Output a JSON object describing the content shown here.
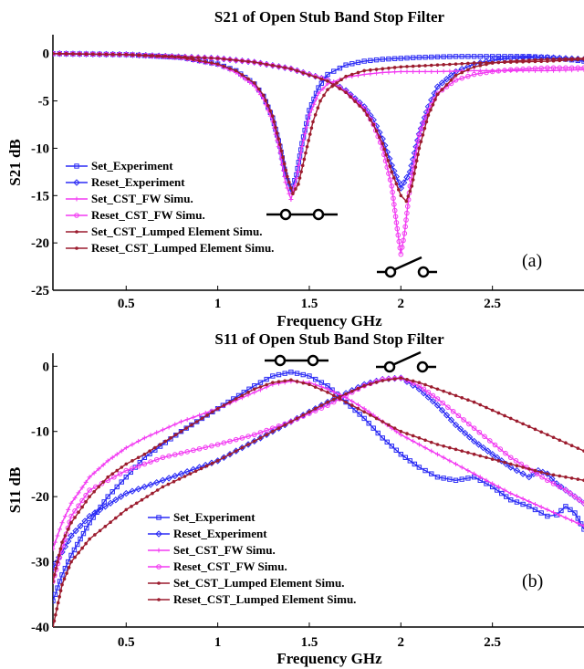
{
  "colors": {
    "blue": "#2b2bf5",
    "magenta": "#f23af2",
    "darkred": "#9c1c2e"
  },
  "chart_data": [
    {
      "type": "line",
      "title": "S21 of Open Stub Band Stop Filter",
      "xlabel": "Frequency GHz",
      "ylabel": "S21 dB",
      "xlim": [
        0.1,
        3.0
      ],
      "ylim": [
        -25,
        2
      ],
      "xticks": [
        0.5,
        1,
        1.5,
        2,
        2.5
      ],
      "xtick_labels": [
        "0.5",
        "1",
        "1.5",
        "2",
        "2.5"
      ],
      "yticks": [
        0,
        -5,
        -10,
        -15,
        -20,
        -25
      ],
      "ytick_labels": [
        "0",
        "-5",
        "-10",
        "-15",
        "-20",
        "-25"
      ],
      "grid": false,
      "legend_position": "lower-left",
      "panel_label": "(a)",
      "series": [
        {
          "name": "Set_Experiment",
          "color": "#2b2bf5",
          "marker": "square",
          "x": [
            0.1,
            0.5,
            0.8,
            1.0,
            1.1,
            1.2,
            1.25,
            1.3,
            1.34,
            1.37,
            1.4,
            1.43,
            1.46,
            1.5,
            1.55,
            1.6,
            1.7,
            1.8,
            1.9,
            2.0,
            2.1,
            2.2,
            2.3,
            2.4,
            2.5,
            2.6,
            2.7,
            2.8,
            2.9,
            3.0
          ],
          "y": [
            0,
            -0.1,
            -0.4,
            -1.1,
            -1.8,
            -3.2,
            -4.5,
            -6.8,
            -9.8,
            -12.8,
            -14.6,
            -12.8,
            -9.5,
            -6.0,
            -3.6,
            -2.2,
            -1.2,
            -0.8,
            -0.6,
            -0.5,
            -0.4,
            -0.35,
            -0.3,
            -0.3,
            -0.3,
            -0.3,
            -0.3,
            -0.4,
            -0.6,
            -0.8
          ]
        },
        {
          "name": "Reset_Experiment",
          "color": "#2b2bf5",
          "marker": "diamond",
          "x": [
            0.1,
            0.5,
            1.0,
            1.2,
            1.4,
            1.6,
            1.7,
            1.8,
            1.85,
            1.9,
            1.95,
            2.0,
            2.05,
            2.1,
            2.15,
            2.2,
            2.3,
            2.4,
            2.5,
            2.6,
            2.7,
            2.8,
            2.9,
            3.0
          ],
          "y": [
            0,
            -0.1,
            -0.5,
            -0.9,
            -1.6,
            -2.8,
            -3.9,
            -5.6,
            -7.0,
            -9.0,
            -11.8,
            -14.2,
            -12.5,
            -8.5,
            -5.6,
            -3.5,
            -1.9,
            -1.1,
            -0.7,
            -0.5,
            -0.4,
            -0.4,
            -0.5,
            -0.6
          ]
        },
        {
          "name": "Set_CST_FW Simu.",
          "color": "#f23af2",
          "marker": "plus",
          "x": [
            0.1,
            0.5,
            0.8,
            1.0,
            1.1,
            1.2,
            1.25,
            1.3,
            1.34,
            1.37,
            1.4,
            1.43,
            1.46,
            1.5,
            1.55,
            1.6,
            1.7,
            1.8,
            1.9,
            2.0,
            2.2,
            2.4,
            2.6,
            2.8,
            3.0
          ],
          "y": [
            0,
            -0.1,
            -0.5,
            -1.2,
            -2.0,
            -3.4,
            -4.8,
            -7.2,
            -10.5,
            -13.6,
            -15.4,
            -13.2,
            -9.8,
            -6.5,
            -4.2,
            -3.2,
            -2.5,
            -2.2,
            -2.0,
            -1.9,
            -1.9,
            -1.8,
            -1.8,
            -1.8,
            -1.7
          ]
        },
        {
          "name": "Reset_CST_FW Simu.",
          "color": "#f23af2",
          "marker": "circle",
          "x": [
            0.1,
            0.5,
            1.0,
            1.2,
            1.4,
            1.6,
            1.7,
            1.8,
            1.85,
            1.9,
            1.95,
            1.98,
            2.0,
            2.02,
            2.05,
            2.1,
            2.15,
            2.2,
            2.3,
            2.4,
            2.5,
            2.6,
            2.8,
            3.0
          ],
          "y": [
            0,
            -0.1,
            -0.5,
            -0.9,
            -1.6,
            -2.8,
            -4.0,
            -5.8,
            -7.5,
            -10.0,
            -14.0,
            -18.5,
            -21.2,
            -19.0,
            -14.0,
            -8.6,
            -6.0,
            -4.2,
            -2.8,
            -2.2,
            -1.9,
            -1.7,
            -1.5,
            -1.5
          ]
        },
        {
          "name": "Set_CST_Lumped Element Simu.",
          "color": "#9c1c2e",
          "marker": "dot",
          "x": [
            0.1,
            0.5,
            0.8,
            1.0,
            1.1,
            1.2,
            1.25,
            1.3,
            1.34,
            1.38,
            1.41,
            1.44,
            1.48,
            1.52,
            1.56,
            1.6,
            1.7,
            1.8,
            1.9,
            2.0,
            2.2,
            2.4,
            2.6,
            2.8,
            3.0
          ],
          "y": [
            0,
            -0.1,
            -0.4,
            -1.1,
            -1.8,
            -3.1,
            -4.4,
            -6.6,
            -9.6,
            -13.0,
            -14.8,
            -13.8,
            -10.5,
            -7.2,
            -5.0,
            -3.8,
            -2.4,
            -1.8,
            -1.6,
            -1.4,
            -1.2,
            -1.0,
            -0.9,
            -0.8,
            -0.6
          ]
        },
        {
          "name": "Reset_CST_Lumped Element Simu.",
          "color": "#9c1c2e",
          "marker": "dot",
          "x": [
            0.1,
            0.5,
            1.0,
            1.2,
            1.4,
            1.6,
            1.7,
            1.8,
            1.85,
            1.9,
            1.95,
            2.0,
            2.03,
            2.06,
            2.1,
            2.15,
            2.2,
            2.3,
            2.4,
            2.5,
            2.6,
            2.8,
            3.0
          ],
          "y": [
            0,
            -0.1,
            -0.5,
            -0.9,
            -1.6,
            -2.9,
            -4.1,
            -6.0,
            -7.5,
            -9.5,
            -12.5,
            -15.0,
            -15.6,
            -14.0,
            -10.0,
            -6.5,
            -4.3,
            -2.3,
            -1.4,
            -1.0,
            -0.8,
            -0.6,
            -0.5
          ]
        }
      ]
    },
    {
      "type": "line",
      "title": "S11 of Open Stub Band Stop Filter",
      "xlabel": "Frequency GHz",
      "ylabel": "S11 dB",
      "xlim": [
        0.1,
        3.0
      ],
      "ylim": [
        -40,
        2
      ],
      "xticks": [
        0.5,
        1,
        1.5,
        2,
        2.5
      ],
      "xtick_labels": [
        "0.5",
        "1",
        "1.5",
        "2",
        "2.5"
      ],
      "yticks": [
        0,
        -10,
        -20,
        -30,
        -40
      ],
      "ytick_labels": [
        "0",
        "-10",
        "-20",
        "-30",
        "-40"
      ],
      "grid": false,
      "legend_position": "lower-center",
      "panel_label": "(b)",
      "series": [
        {
          "name": "Set_Experiment",
          "color": "#2b2bf5",
          "marker": "square",
          "x": [
            0.1,
            0.15,
            0.2,
            0.3,
            0.4,
            0.5,
            0.6,
            0.8,
            1.0,
            1.2,
            1.3,
            1.4,
            1.5,
            1.6,
            1.7,
            1.8,
            1.9,
            2.0,
            2.1,
            2.2,
            2.3,
            2.4,
            2.5,
            2.6,
            2.7,
            2.8,
            2.85,
            2.9,
            2.95,
            3.0
          ],
          "y": [
            -36,
            -32,
            -29,
            -24,
            -20,
            -17,
            -14,
            -10,
            -6.5,
            -3.0,
            -1.5,
            -0.9,
            -1.5,
            -3.0,
            -5.5,
            -8.0,
            -11.0,
            -13.5,
            -15.5,
            -17.0,
            -17.5,
            -17.0,
            -18.5,
            -20.5,
            -21.5,
            -23.0,
            -22.8,
            -21.5,
            -22.5,
            -25.0
          ]
        },
        {
          "name": "Reset_Experiment",
          "color": "#2b2bf5",
          "marker": "diamond",
          "x": [
            0.1,
            0.2,
            0.3,
            0.5,
            0.7,
            1.0,
            1.2,
            1.4,
            1.6,
            1.8,
            1.9,
            2.0,
            2.1,
            2.2,
            2.3,
            2.4,
            2.5,
            2.6,
            2.7,
            2.75,
            2.8,
            2.85,
            2.9,
            3.0
          ],
          "y": [
            -31,
            -26,
            -23,
            -19.5,
            -17.5,
            -14.5,
            -11.5,
            -8.5,
            -5.5,
            -2.8,
            -2.0,
            -1.8,
            -3.5,
            -6.0,
            -9.0,
            -11.5,
            -13.5,
            -15.5,
            -17.0,
            -16.0,
            -16.5,
            -18.0,
            -19.0,
            -21.0
          ]
        },
        {
          "name": "Set_CST_FW Simu.",
          "color": "#f23af2",
          "marker": "plus",
          "x": [
            0.1,
            0.15,
            0.2,
            0.3,
            0.4,
            0.5,
            0.6,
            0.8,
            1.0,
            1.2,
            1.3,
            1.4,
            1.5,
            1.6,
            1.7,
            1.8,
            1.9,
            2.0,
            2.2,
            2.4,
            2.6,
            2.8,
            3.0
          ],
          "y": [
            -28,
            -24,
            -21,
            -17,
            -14.5,
            -12.5,
            -11,
            -8.5,
            -6.5,
            -4.0,
            -2.8,
            -2.3,
            -2.5,
            -3.5,
            -4.8,
            -6.5,
            -8.5,
            -10.5,
            -13.5,
            -16.5,
            -19.5,
            -22.0,
            -24.5
          ]
        },
        {
          "name": "Reset_CST_FW Simu.",
          "color": "#f23af2",
          "marker": "circle",
          "x": [
            0.1,
            0.2,
            0.3,
            0.5,
            0.7,
            1.0,
            1.2,
            1.4,
            1.6,
            1.8,
            1.9,
            2.0,
            2.1,
            2.2,
            2.4,
            2.6,
            2.8,
            2.9,
            3.0
          ],
          "y": [
            -33,
            -23,
            -19,
            -16,
            -14,
            -12,
            -10.5,
            -8.5,
            -6.0,
            -3.0,
            -2.0,
            -1.8,
            -3.0,
            -5.0,
            -9.5,
            -14.0,
            -17.5,
            -19.0,
            -21.0
          ]
        },
        {
          "name": "Set_CST_Lumped Element Simu.",
          "color": "#9c1c2e",
          "marker": "dot",
          "x": [
            0.1,
            0.15,
            0.2,
            0.3,
            0.4,
            0.5,
            0.6,
            0.8,
            1.0,
            1.2,
            1.3,
            1.4,
            1.5,
            1.6,
            1.7,
            1.8,
            1.9,
            2.0,
            2.2,
            2.4,
            2.6,
            2.8,
            3.0
          ],
          "y": [
            -33,
            -27,
            -24,
            -20,
            -17,
            -15,
            -13.5,
            -10,
            -6.5,
            -3.5,
            -2.5,
            -2.1,
            -2.8,
            -4.0,
            -5.5,
            -7.0,
            -8.5,
            -10.0,
            -12.0,
            -13.5,
            -15.0,
            -16.5,
            -17.5
          ]
        },
        {
          "name": "Reset_CST_Lumped Element Simu.",
          "color": "#9c1c2e",
          "marker": "dot",
          "x": [
            0.1,
            0.15,
            0.2,
            0.3,
            0.5,
            0.7,
            1.0,
            1.2,
            1.4,
            1.6,
            1.8,
            1.9,
            2.0,
            2.1,
            2.2,
            2.4,
            2.6,
            2.8,
            3.0
          ],
          "y": [
            -40,
            -33.5,
            -30,
            -26.5,
            -22,
            -18.5,
            -14.5,
            -11.5,
            -8.5,
            -5.5,
            -3.0,
            -2.2,
            -1.8,
            -2.5,
            -3.5,
            -5.5,
            -8.0,
            -10.5,
            -13.0
          ]
        }
      ]
    }
  ]
}
